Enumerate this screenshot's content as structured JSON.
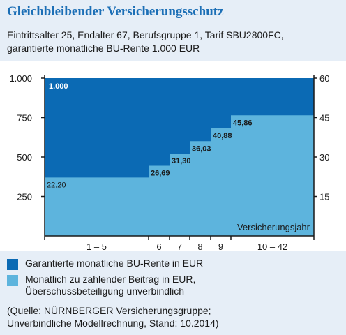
{
  "title": "Gleichbleibender Versicherungsschutz",
  "subtitle_line1": "Eintrittsalter 25, Endalter 67, Berufsgruppe 1, Tarif SBU2800FC,",
  "subtitle_line2": "garantierte monatliche BU-Rente 1.000 EUR",
  "legend": {
    "item1": "Garantierte monatliche BU-Rente in EUR",
    "item2_line1": "Monatlich zu zahlender Beitrag in EUR,",
    "item2_line2": "Überschussbeteiligung unverbindlich"
  },
  "source_line1": "(Quelle: NÜRNBERGER Versicherungsgruppe;",
  "source_line2": "Unverbindliche Modellrechnung, Stand: 10.2014)",
  "colors": {
    "dark_blue": "#0b6ab4",
    "light_blue": "#5db4dd",
    "title_blue": "#1c6fb6",
    "background": "#e6eef7"
  },
  "chart_data": {
    "type": "area",
    "xlabel": "Versicherungsjahr",
    "categories": [
      "1 – 5",
      "6",
      "7",
      "8",
      "9",
      "10 – 42"
    ],
    "category_spans": [
      [
        1,
        5
      ],
      [
        6,
        6
      ],
      [
        7,
        7
      ],
      [
        8,
        8
      ],
      [
        9,
        9
      ],
      [
        10,
        42
      ]
    ],
    "left_axis": {
      "ylim": [
        0,
        1000
      ],
      "ticks": [
        250,
        500,
        750,
        1000
      ],
      "tick_labels": [
        "250",
        "500",
        "750",
        "1.000"
      ]
    },
    "right_axis": {
      "ylim": [
        0,
        60
      ],
      "ticks": [
        15,
        30,
        45,
        60
      ],
      "tick_labels": [
        "15",
        "30",
        "45",
        "60"
      ]
    },
    "series": [
      {
        "name": "Garantierte monatliche BU-Rente in EUR",
        "axis": "left",
        "values": [
          1000,
          1000,
          1000,
          1000,
          1000,
          1000
        ],
        "labels": [
          "1.000"
        ]
      },
      {
        "name": "Monatlich zu zahlender Beitrag in EUR, Überschussbeteiligung unverbindlich",
        "axis": "right",
        "values": [
          22.2,
          26.69,
          31.3,
          36.03,
          40.88,
          45.86
        ],
        "labels": [
          "22,20",
          "26,69",
          "31,30",
          "36,03",
          "40,88",
          "45,86"
        ]
      }
    ],
    "grid": false,
    "legend_placement": "bottom"
  }
}
